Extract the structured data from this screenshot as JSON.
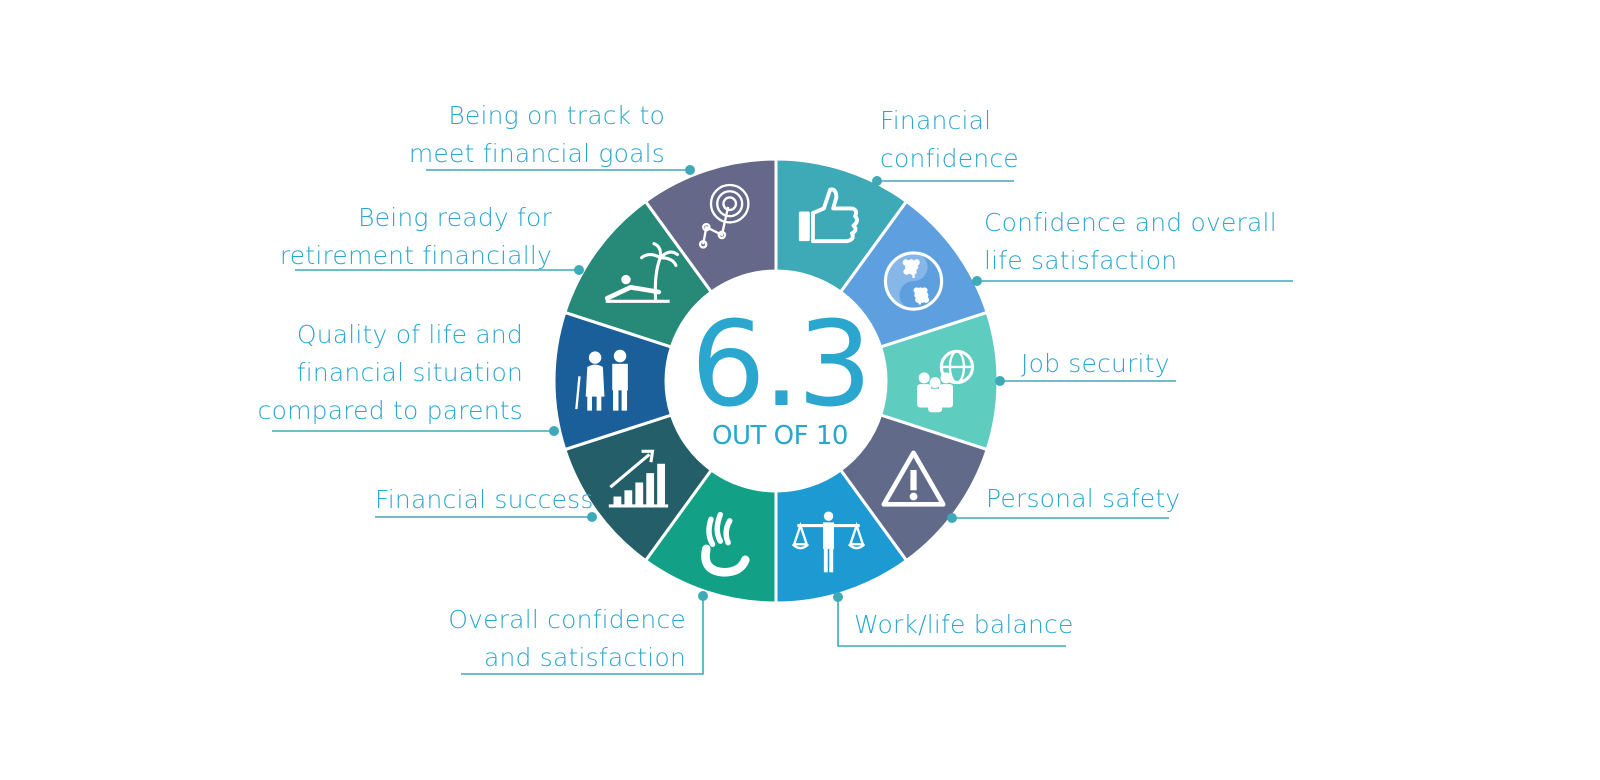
{
  "center": {
    "score": "6.3",
    "subtitle": "OUT OF 10"
  },
  "segments": [
    {
      "key": "financial-confidence",
      "lines": [
        "Financial",
        "confidence"
      ],
      "color": "#3ea9b7",
      "icon": "thumbs-up-icon"
    },
    {
      "key": "confidence-life-satisfaction",
      "lines": [
        "Confidence and overall",
        "life satisfaction"
      ],
      "color": "#5e9fe0",
      "icon": "yin-yang-tree-icon"
    },
    {
      "key": "job-security",
      "lines": [
        "Job security"
      ],
      "color": "#5ecdc0",
      "icon": "globe-people-icon"
    },
    {
      "key": "personal-safety",
      "lines": [
        "Personal safety"
      ],
      "color": "#626a8a",
      "icon": "warning-icon"
    },
    {
      "key": "work-life-balance",
      "lines": [
        "Work/life balance"
      ],
      "color": "#1e9ad3",
      "icon": "scales-person-icon"
    },
    {
      "key": "overall-confidence-satisfaction",
      "lines": [
        "Overall confidence",
        "and satisfaction"
      ],
      "color": "#12a086",
      "icon": "hand-icon"
    },
    {
      "key": "financial-success",
      "lines": [
        "Financial success"
      ],
      "color": "#245e68",
      "icon": "growth-chart-icon"
    },
    {
      "key": "quality-of-life-vs-parents",
      "lines": [
        "Quality of life and",
        "financial situation",
        "compared to parents"
      ],
      "color": "#1b5f9a",
      "icon": "elderly-couple-icon"
    },
    {
      "key": "ready-for-retirement",
      "lines": [
        "Being ready for",
        "retirement financially"
      ],
      "color": "#278a79",
      "icon": "beach-lounger-icon"
    },
    {
      "key": "on-track-financial-goals",
      "lines": [
        "Being on track to",
        "meet financial goals"
      ],
      "color": "#656888",
      "icon": "target-path-icon"
    }
  ],
  "line_color": "#3ea9b7"
}
